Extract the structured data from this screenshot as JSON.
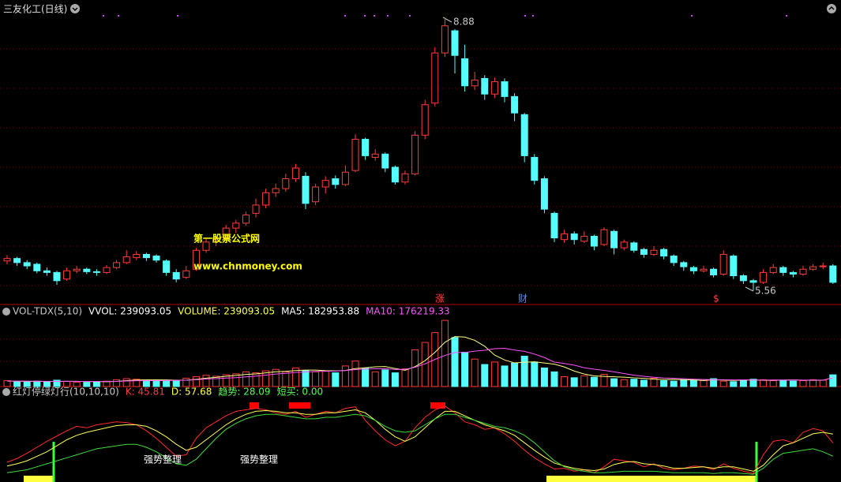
{
  "chart_data": [
    {
      "type": "candlestick",
      "title": "三友化工(日线)",
      "ylim": [
        5.4,
        8.95
      ],
      "up_color": "#ff3c3c",
      "down_color": "#54fcfc",
      "candles": [
        [
          5.92,
          5.99,
          5.88,
          5.95
        ],
        [
          5.95,
          5.97,
          5.86,
          5.9
        ],
        [
          5.9,
          5.93,
          5.82,
          5.86
        ],
        [
          5.88,
          5.9,
          5.77,
          5.8
        ],
        [
          5.8,
          5.84,
          5.74,
          5.78
        ],
        [
          5.78,
          5.8,
          5.63,
          5.68
        ],
        [
          5.7,
          5.84,
          5.68,
          5.8
        ],
        [
          5.8,
          5.86,
          5.77,
          5.82
        ],
        [
          5.82,
          5.84,
          5.76,
          5.79
        ],
        [
          5.79,
          5.82,
          5.74,
          5.78
        ],
        [
          5.78,
          5.87,
          5.76,
          5.84
        ],
        [
          5.84,
          5.93,
          5.82,
          5.9
        ],
        [
          5.9,
          6.05,
          5.88,
          5.97
        ],
        [
          5.96,
          6.04,
          5.93,
          6.0
        ],
        [
          6.0,
          6.02,
          5.92,
          5.96
        ],
        [
          5.98,
          6.0,
          5.9,
          5.93
        ],
        [
          5.92,
          5.94,
          5.74,
          5.78
        ],
        [
          5.78,
          5.82,
          5.66,
          5.7
        ],
        [
          5.72,
          5.86,
          5.7,
          5.8
        ],
        [
          5.82,
          6.08,
          5.8,
          6.05
        ],
        [
          6.05,
          6.2,
          6.02,
          6.15
        ],
        [
          6.16,
          6.24,
          6.1,
          6.2
        ],
        [
          6.2,
          6.36,
          6.18,
          6.32
        ],
        [
          6.32,
          6.42,
          6.26,
          6.38
        ],
        [
          6.38,
          6.52,
          6.35,
          6.48
        ],
        [
          6.5,
          6.68,
          6.45,
          6.6
        ],
        [
          6.6,
          6.8,
          6.56,
          6.75
        ],
        [
          6.75,
          6.86,
          6.7,
          6.8
        ],
        [
          6.8,
          6.98,
          6.76,
          6.92
        ],
        [
          6.92,
          7.1,
          6.88,
          7.05
        ],
        [
          6.95,
          7.0,
          6.55,
          6.62
        ],
        [
          6.64,
          6.86,
          6.6,
          6.82
        ],
        [
          6.82,
          6.95,
          6.74,
          6.9
        ],
        [
          6.92,
          6.96,
          6.8,
          6.85
        ],
        [
          6.85,
          7.08,
          6.83,
          7.0
        ],
        [
          7.02,
          7.46,
          7.0,
          7.4
        ],
        [
          7.4,
          7.42,
          7.15,
          7.2
        ],
        [
          7.18,
          7.28,
          7.14,
          7.22
        ],
        [
          7.22,
          7.24,
          7.0,
          7.05
        ],
        [
          7.06,
          7.08,
          6.85,
          6.88
        ],
        [
          6.88,
          7.02,
          6.85,
          6.98
        ],
        [
          6.98,
          7.5,
          6.96,
          7.45
        ],
        [
          7.45,
          7.88,
          7.4,
          7.82
        ],
        [
          7.84,
          8.52,
          7.8,
          8.45
        ],
        [
          8.45,
          8.88,
          8.4,
          8.78
        ],
        [
          8.72,
          8.74,
          8.2,
          8.42
        ],
        [
          8.38,
          8.55,
          7.98,
          8.05
        ],
        [
          8.05,
          8.22,
          8.0,
          8.12
        ],
        [
          8.14,
          8.18,
          7.88,
          7.95
        ],
        [
          7.95,
          8.15,
          7.9,
          8.1
        ],
        [
          8.1,
          8.14,
          7.85,
          7.92
        ],
        [
          7.92,
          7.96,
          7.62,
          7.72
        ],
        [
          7.7,
          7.72,
          7.12,
          7.2
        ],
        [
          7.18,
          7.22,
          6.85,
          6.9
        ],
        [
          6.92,
          6.95,
          6.5,
          6.55
        ],
        [
          6.5,
          6.52,
          6.15,
          6.2
        ],
        [
          6.18,
          6.3,
          6.14,
          6.25
        ],
        [
          6.25,
          6.28,
          6.12,
          6.18
        ],
        [
          6.16,
          6.28,
          6.14,
          6.22
        ],
        [
          6.22,
          6.24,
          6.05,
          6.1
        ],
        [
          6.12,
          6.33,
          6.1,
          6.3
        ],
        [
          6.28,
          6.3,
          6.0,
          6.08
        ],
        [
          6.08,
          6.18,
          6.05,
          6.15
        ],
        [
          6.14,
          6.16,
          6.02,
          6.05
        ],
        [
          6.06,
          6.08,
          5.96,
          6.0
        ],
        [
          6.0,
          6.1,
          5.98,
          6.05
        ],
        [
          6.06,
          6.08,
          5.94,
          5.98
        ],
        [
          5.98,
          6.0,
          5.86,
          5.9
        ],
        [
          5.9,
          5.92,
          5.8,
          5.85
        ],
        [
          5.84,
          5.86,
          5.76,
          5.8
        ],
        [
          5.8,
          5.86,
          5.78,
          5.82
        ],
        [
          5.82,
          5.84,
          5.72,
          5.75
        ],
        [
          5.76,
          6.05,
          5.74,
          6.0
        ],
        [
          5.98,
          6.0,
          5.7,
          5.74
        ],
        [
          5.74,
          5.76,
          5.64,
          5.68
        ],
        [
          5.68,
          5.7,
          5.56,
          5.66
        ],
        [
          5.66,
          5.82,
          5.64,
          5.78
        ],
        [
          5.78,
          5.88,
          5.76,
          5.84
        ],
        [
          5.84,
          5.86,
          5.74,
          5.78
        ],
        [
          5.78,
          5.8,
          5.72,
          5.76
        ],
        [
          5.76,
          5.86,
          5.74,
          5.82
        ],
        [
          5.82,
          5.88,
          5.8,
          5.85
        ],
        [
          5.85,
          5.9,
          5.82,
          5.86
        ],
        [
          5.86,
          5.88,
          5.64,
          5.66
        ]
      ],
      "high_label": 8.88,
      "low_label": 5.56,
      "markers": [
        "涨",
        "财",
        "$"
      ],
      "watermark": [
        "第一股票公式网",
        "www.chnmoney.com"
      ]
    },
    {
      "type": "bar",
      "headers": [
        {
          "text": "VOL-TDX(5,10)",
          "color": "#c8c8c8"
        },
        {
          "text": "VVOL: 239093.05",
          "color": "#ffffff"
        },
        {
          "text": "VOLUME: 239093.05",
          "color": "#ffff54"
        },
        {
          "text": "MA5: 182953.88",
          "color": "#ffffff"
        },
        {
          "text": "MA10: 176219.33",
          "color": "#ff54ff"
        }
      ],
      "ylim": [
        0,
        1400000
      ],
      "values": [
        120000,
        100000,
        90000,
        110000,
        95000,
        130000,
        105000,
        90000,
        85000,
        100000,
        110000,
        140000,
        160000,
        150000,
        120000,
        110000,
        130000,
        125000,
        170000,
        200000,
        230000,
        210000,
        240000,
        260000,
        300000,
        280000,
        320000,
        350000,
        300000,
        380000,
        330000,
        300000,
        310000,
        280000,
        420000,
        520000,
        380000,
        300000,
        340000,
        280000,
        360000,
        750000,
        900000,
        1100000,
        1350000,
        1000000,
        700000,
        560000,
        450000,
        500000,
        420000,
        480000,
        620000,
        500000,
        380000,
        300000,
        200000,
        180000,
        220000,
        190000,
        250000,
        160000,
        140000,
        150000,
        130000,
        170000,
        120000,
        110000,
        140000,
        130000,
        120000,
        160000,
        110000,
        100000,
        130000,
        150000,
        140000,
        120000,
        130000,
        110000,
        120000,
        140000,
        130000,
        239093.05
      ],
      "series": [
        {
          "name": "MA5",
          "color": "#ffff80",
          "values": [
            110000,
            108000,
            105000,
            104000,
            103000,
            105000,
            106000,
            106000,
            101000,
            102000,
            98000,
            105000,
            121000,
            132000,
            136000,
            136000,
            134000,
            129000,
            131000,
            147000,
            171000,
            187000,
            210000,
            228000,
            248000,
            258000,
            280000,
            302000,
            310000,
            326000,
            336000,
            336000,
            324000,
            320000,
            328000,
            366000,
            382000,
            402000,
            408000,
            368000,
            332000,
            406000,
            526000,
            698000,
            902000,
            1020000,
            1010000,
            942000,
            822000,
            642000,
            542000,
            482000,
            494000,
            504000,
            480000,
            456000,
            400000,
            316000,
            256000,
            218000,
            208000,
            200000,
            192000,
            178000,
            166000,
            150000,
            142000,
            144000,
            138000,
            134000,
            124000,
            136000,
            132000,
            124000,
            132000,
            134000,
            126000,
            128000,
            132000,
            134000,
            128000,
            126000,
            128000,
            182953.88
          ]
        },
        {
          "name": "MA10",
          "color": "#ff54ff",
          "values": [
            112000,
            111000,
            110000,
            108000,
            107000,
            107000,
            106000,
            105000,
            104000,
            104000,
            104000,
            105000,
            113000,
            118000,
            119000,
            120000,
            122000,
            125000,
            129000,
            139000,
            154000,
            161000,
            172000,
            182000,
            198000,
            214000,
            234000,
            256000,
            269000,
            287000,
            297000,
            308000,
            313000,
            315000,
            327000,
            346000,
            359000,
            363000,
            364000,
            348000,
            349000,
            394000,
            464000,
            553000,
            635000,
            693000,
            696000,
            722000,
            740000,
            772000,
            781000,
            745000,
            718000,
            663000,
            591000,
            499000,
            471000,
            436000,
            385000,
            354000,
            329000,
            300000,
            266000,
            232000,
            209000,
            189000,
            175000,
            168000,
            158000,
            150000,
            145000,
            138000,
            138000,
            134000,
            136000,
            134000,
            131000,
            135000,
            130000,
            133000,
            130000,
            131000,
            130000,
            176219.33
          ]
        }
      ]
    },
    {
      "type": "line",
      "headers": [
        {
          "text": "红灯停绿灯行(10,10,10)",
          "color": "#c8c8c8"
        },
        {
          "text": "K: 45.81",
          "color": "#ff3c3c"
        },
        {
          "text": "D: 57.68",
          "color": "#ffff54"
        },
        {
          "text": "趋势: 28.09",
          "color": "#54ff54"
        },
        {
          "text": "短买: 0.00",
          "color": "#54ff54"
        }
      ],
      "ylim": [
        0,
        100
      ],
      "series": [
        {
          "name": "K",
          "color": "#ff2a2a",
          "values": [
            20,
            25,
            32,
            40,
            48,
            55,
            62,
            68,
            66,
            70,
            72,
            74,
            73,
            70,
            62,
            52,
            40,
            28,
            30,
            52,
            66,
            74,
            82,
            88,
            90,
            92,
            90,
            86,
            84,
            88,
            80,
            84,
            88,
            86,
            92,
            94,
            76,
            62,
            50,
            42,
            48,
            66,
            80,
            90,
            95,
            86,
            74,
            70,
            64,
            66,
            58,
            48,
            36,
            26,
            18,
            11,
            12,
            8,
            10,
            6,
            14,
            24,
            22,
            20,
            14,
            18,
            12,
            10,
            12,
            15,
            14,
            10,
            18,
            12,
            8,
            5,
            30,
            48,
            50,
            46,
            60,
            65,
            62,
            45.81
          ]
        },
        {
          "name": "D",
          "color": "#ffff54",
          "values": [
            15,
            18,
            22,
            28,
            34,
            42,
            50,
            56,
            60,
            63,
            66,
            69,
            70,
            70,
            68,
            62,
            54,
            44,
            36,
            40,
            50,
            60,
            70,
            78,
            84,
            88,
            89,
            88,
            86,
            86,
            84,
            84,
            86,
            86,
            88,
            90,
            86,
            76,
            64,
            54,
            48,
            54,
            66,
            78,
            88,
            88,
            82,
            76,
            70,
            66,
            62,
            56,
            46,
            36,
            27,
            19,
            15,
            12,
            10,
            9,
            11,
            17,
            20,
            21,
            18,
            17,
            15,
            12,
            12,
            13,
            14,
            12,
            14,
            14,
            11,
            8,
            16,
            30,
            42,
            46,
            52,
            58,
            60,
            57.68
          ]
        },
        {
          "name": "趋势",
          "color": "#3cdc3c",
          "values": [
            6,
            8,
            10,
            14,
            18,
            22,
            26,
            30,
            34,
            38,
            40,
            42,
            44,
            44,
            40,
            34,
            26,
            18,
            16,
            24,
            38,
            52,
            64,
            72,
            78,
            82,
            84,
            84,
            82,
            80,
            78,
            78,
            80,
            80,
            82,
            84,
            82,
            76,
            68,
            62,
            60,
            62,
            70,
            78,
            84,
            84,
            80,
            76,
            72,
            68,
            66,
            62,
            56,
            46,
            34,
            22,
            14,
            10,
            8,
            6,
            6,
            7,
            8,
            8,
            8,
            8,
            7,
            6,
            6,
            6,
            6,
            5,
            6,
            6,
            5,
            4,
            12,
            24,
            32,
            34,
            36,
            38,
            34,
            28.09
          ]
        }
      ],
      "annotations": [
        "强势整理",
        "强势整理"
      ]
    }
  ]
}
